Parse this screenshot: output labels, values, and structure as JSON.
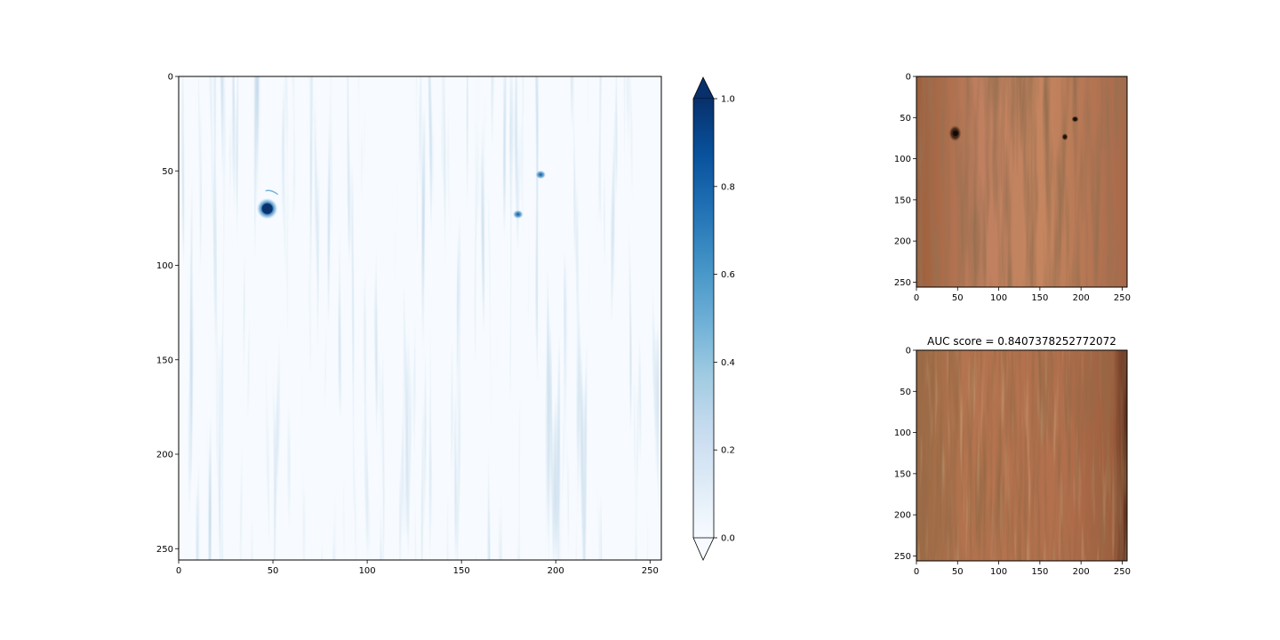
{
  "chart_data": [
    {
      "type": "heatmap",
      "image": "anomaly-heatmap",
      "colormap": "Blues",
      "xlim": [
        0,
        256
      ],
      "ylim": [
        256,
        0
      ],
      "xticks": [
        0,
        50,
        100,
        150,
        200,
        250
      ],
      "yticks": [
        0,
        50,
        100,
        150,
        200,
        250
      ],
      "hot_spots": [
        {
          "x": 47,
          "y": 70,
          "intensity": 0.95
        },
        {
          "x": 192,
          "y": 52,
          "intensity": 0.75
        },
        {
          "x": 180,
          "y": 73,
          "intensity": 0.7
        }
      ],
      "colorbar": {
        "vmin": 0.0,
        "vmax": 1.0,
        "extend": "both",
        "ticks": [
          "0.0",
          "0.2",
          "0.4",
          "0.6",
          "0.8",
          "1.0"
        ]
      }
    },
    {
      "type": "image",
      "image": "wood-texture-with-holes",
      "xlim": [
        0,
        256
      ],
      "ylim": [
        256,
        0
      ],
      "xticks": [
        0,
        50,
        100,
        150,
        200,
        250
      ],
      "yticks": [
        0,
        50,
        100,
        150,
        200,
        250
      ]
    },
    {
      "type": "image",
      "image": "wood-texture-reconstruction",
      "title": "AUC score = 0.8407378252772072",
      "xlim": [
        0,
        256
      ],
      "ylim": [
        256,
        0
      ],
      "xticks": [
        0,
        50,
        100,
        150,
        200,
        250
      ],
      "yticks": [
        0,
        50,
        100,
        150,
        200,
        250
      ]
    }
  ],
  "colors": {
    "heat_light": "#f7fbff",
    "heat_mid": "#6baed6",
    "heat_dark": "#08306b",
    "wood_base": "#b77a55",
    "wood_dark": "#6b3d22"
  }
}
